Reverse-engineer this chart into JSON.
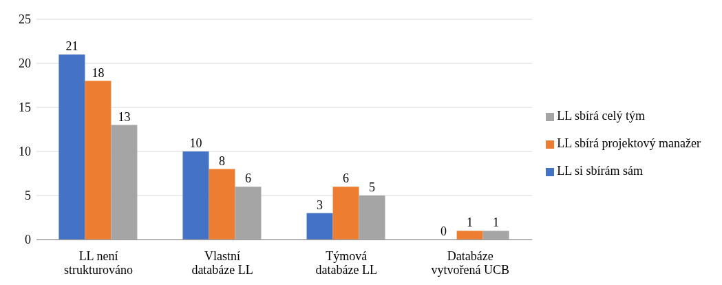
{
  "chart_data": {
    "type": "bar",
    "categories": [
      "LL není strukturováno",
      "Vlastní databáze LL",
      "Týmová databáze LL",
      "Databáze vytvořená UCB"
    ],
    "series": [
      {
        "name": "LL si sbírám sám",
        "color": "#4472c4",
        "values": [
          21,
          10,
          3,
          0
        ]
      },
      {
        "name": "LL sbírá projektový manažer",
        "color": "#ed7d31",
        "values": [
          18,
          8,
          6,
          1
        ]
      },
      {
        "name": "LL sbírá celý tým",
        "color": "#a5a5a5",
        "values": [
          13,
          6,
          5,
          1
        ]
      }
    ],
    "ylim": [
      0,
      25
    ],
    "yticks": [
      0,
      5,
      10,
      15,
      20,
      25
    ],
    "grid": "y",
    "legend": "right",
    "data_labels": true
  }
}
